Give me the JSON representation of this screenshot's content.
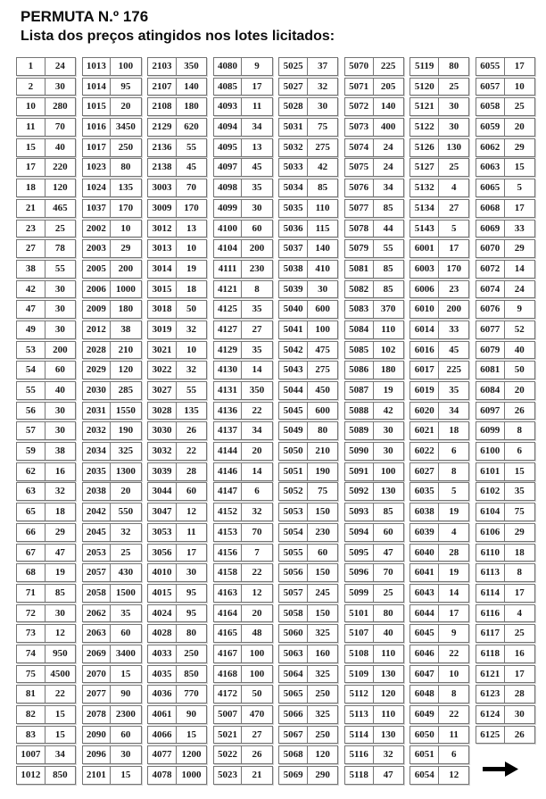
{
  "header": {
    "title": "PERMUTA N.º 176",
    "subtitle": "Lista dos preços atingidos nos lotes licitados:"
  },
  "icons": {
    "continuation_arrow": "right-arrow"
  },
  "table": {
    "column_semantics": [
      "lot_number",
      "price"
    ],
    "columns": [
      [
        [
          1,
          24
        ],
        [
          2,
          30
        ],
        [
          10,
          280
        ],
        [
          11,
          70
        ],
        [
          15,
          40
        ],
        [
          17,
          220
        ],
        [
          18,
          120
        ],
        [
          21,
          465
        ],
        [
          23,
          25
        ],
        [
          27,
          78
        ],
        [
          38,
          55
        ],
        [
          42,
          30
        ],
        [
          47,
          30
        ],
        [
          49,
          30
        ],
        [
          53,
          200
        ],
        [
          54,
          60
        ],
        [
          55,
          40
        ],
        [
          56,
          30
        ],
        [
          57,
          30
        ],
        [
          59,
          38
        ],
        [
          62,
          16
        ],
        [
          63,
          32
        ],
        [
          65,
          18
        ],
        [
          66,
          29
        ],
        [
          67,
          47
        ],
        [
          68,
          19
        ],
        [
          71,
          85
        ],
        [
          72,
          30
        ],
        [
          73,
          12
        ],
        [
          74,
          950
        ],
        [
          75,
          4500
        ],
        [
          81,
          22
        ],
        [
          82,
          15
        ],
        [
          83,
          15
        ],
        [
          1007,
          34
        ],
        [
          1012,
          850
        ]
      ],
      [
        [
          1013,
          100
        ],
        [
          1014,
          95
        ],
        [
          1015,
          20
        ],
        [
          1016,
          3450
        ],
        [
          1017,
          250
        ],
        [
          1023,
          80
        ],
        [
          1024,
          135
        ],
        [
          1037,
          170
        ],
        [
          2002,
          10
        ],
        [
          2003,
          29
        ],
        [
          2005,
          200
        ],
        [
          2006,
          1000
        ],
        [
          2009,
          180
        ],
        [
          2012,
          38
        ],
        [
          2028,
          210
        ],
        [
          2029,
          120
        ],
        [
          2030,
          285
        ],
        [
          2031,
          1550
        ],
        [
          2032,
          190
        ],
        [
          2034,
          325
        ],
        [
          2035,
          1300
        ],
        [
          2038,
          20
        ],
        [
          2042,
          550
        ],
        [
          2045,
          32
        ],
        [
          2053,
          25
        ],
        [
          2057,
          430
        ],
        [
          2058,
          1500
        ],
        [
          2062,
          35
        ],
        [
          2063,
          60
        ],
        [
          2069,
          3400
        ],
        [
          2070,
          15
        ],
        [
          2077,
          90
        ],
        [
          2078,
          2300
        ],
        [
          2090,
          60
        ],
        [
          2096,
          30
        ],
        [
          2101,
          15
        ]
      ],
      [
        [
          2103,
          350
        ],
        [
          2107,
          140
        ],
        [
          2108,
          180
        ],
        [
          2129,
          620
        ],
        [
          2136,
          55
        ],
        [
          2138,
          45
        ],
        [
          3003,
          70
        ],
        [
          3009,
          170
        ],
        [
          3012,
          13
        ],
        [
          3013,
          10
        ],
        [
          3014,
          19
        ],
        [
          3015,
          18
        ],
        [
          3018,
          50
        ],
        [
          3019,
          32
        ],
        [
          3021,
          10
        ],
        [
          3022,
          32
        ],
        [
          3027,
          55
        ],
        [
          3028,
          135
        ],
        [
          3030,
          26
        ],
        [
          3032,
          22
        ],
        [
          3039,
          28
        ],
        [
          3044,
          60
        ],
        [
          3047,
          12
        ],
        [
          3053,
          11
        ],
        [
          3056,
          17
        ],
        [
          4010,
          30
        ],
        [
          4015,
          95
        ],
        [
          4024,
          95
        ],
        [
          4028,
          80
        ],
        [
          4033,
          250
        ],
        [
          4035,
          850
        ],
        [
          4036,
          770
        ],
        [
          4061,
          90
        ],
        [
          4066,
          15
        ],
        [
          4077,
          1200
        ],
        [
          4078,
          1000
        ]
      ],
      [
        [
          4080,
          9
        ],
        [
          4085,
          17
        ],
        [
          4093,
          11
        ],
        [
          4094,
          34
        ],
        [
          4095,
          13
        ],
        [
          4097,
          45
        ],
        [
          4098,
          35
        ],
        [
          4099,
          30
        ],
        [
          4100,
          60
        ],
        [
          4104,
          200
        ],
        [
          4111,
          230
        ],
        [
          4121,
          8
        ],
        [
          4125,
          35
        ],
        [
          4127,
          27
        ],
        [
          4129,
          35
        ],
        [
          4130,
          14
        ],
        [
          4131,
          350
        ],
        [
          4136,
          22
        ],
        [
          4137,
          34
        ],
        [
          4144,
          20
        ],
        [
          4146,
          14
        ],
        [
          4147,
          6
        ],
        [
          4152,
          32
        ],
        [
          4153,
          70
        ],
        [
          4156,
          7
        ],
        [
          4158,
          22
        ],
        [
          4163,
          12
        ],
        [
          4164,
          20
        ],
        [
          4165,
          48
        ],
        [
          4167,
          100
        ],
        [
          4168,
          100
        ],
        [
          4172,
          50
        ],
        [
          5007,
          470
        ],
        [
          5021,
          27
        ],
        [
          5022,
          26
        ],
        [
          5023,
          21
        ]
      ],
      [
        [
          5025,
          37
        ],
        [
          5027,
          32
        ],
        [
          5028,
          30
        ],
        [
          5031,
          75
        ],
        [
          5032,
          275
        ],
        [
          5033,
          42
        ],
        [
          5034,
          85
        ],
        [
          5035,
          110
        ],
        [
          5036,
          115
        ],
        [
          5037,
          140
        ],
        [
          5038,
          410
        ],
        [
          5039,
          30
        ],
        [
          5040,
          600
        ],
        [
          5041,
          100
        ],
        [
          5042,
          475
        ],
        [
          5043,
          275
        ],
        [
          5044,
          450
        ],
        [
          5045,
          600
        ],
        [
          5049,
          80
        ],
        [
          5050,
          210
        ],
        [
          5051,
          190
        ],
        [
          5052,
          75
        ],
        [
          5053,
          150
        ],
        [
          5054,
          230
        ],
        [
          5055,
          60
        ],
        [
          5056,
          150
        ],
        [
          5057,
          245
        ],
        [
          5058,
          150
        ],
        [
          5060,
          325
        ],
        [
          5063,
          160
        ],
        [
          5064,
          325
        ],
        [
          5065,
          250
        ],
        [
          5066,
          325
        ],
        [
          5067,
          250
        ],
        [
          5068,
          120
        ],
        [
          5069,
          290
        ]
      ],
      [
        [
          5070,
          225
        ],
        [
          5071,
          205
        ],
        [
          5072,
          140
        ],
        [
          5073,
          400
        ],
        [
          5074,
          24
        ],
        [
          5075,
          24
        ],
        [
          5076,
          34
        ],
        [
          5077,
          85
        ],
        [
          5078,
          44
        ],
        [
          5079,
          55
        ],
        [
          5081,
          85
        ],
        [
          5082,
          85
        ],
        [
          5083,
          370
        ],
        [
          5084,
          110
        ],
        [
          5085,
          102
        ],
        [
          5086,
          180
        ],
        [
          5087,
          19
        ],
        [
          5088,
          42
        ],
        [
          5089,
          30
        ],
        [
          5090,
          30
        ],
        [
          5091,
          100
        ],
        [
          5092,
          130
        ],
        [
          5093,
          85
        ],
        [
          5094,
          60
        ],
        [
          5095,
          47
        ],
        [
          5096,
          70
        ],
        [
          5099,
          25
        ],
        [
          5101,
          80
        ],
        [
          5107,
          40
        ],
        [
          5108,
          110
        ],
        [
          5109,
          130
        ],
        [
          5112,
          120
        ],
        [
          5113,
          110
        ],
        [
          5114,
          130
        ],
        [
          5116,
          32
        ],
        [
          5118,
          47
        ]
      ],
      [
        [
          5119,
          80
        ],
        [
          5120,
          25
        ],
        [
          5121,
          30
        ],
        [
          5122,
          30
        ],
        [
          5126,
          130
        ],
        [
          5127,
          25
        ],
        [
          5132,
          4
        ],
        [
          5134,
          27
        ],
        [
          5143,
          5
        ],
        [
          6001,
          17
        ],
        [
          6003,
          170
        ],
        [
          6006,
          23
        ],
        [
          6010,
          200
        ],
        [
          6014,
          33
        ],
        [
          6016,
          45
        ],
        [
          6017,
          225
        ],
        [
          6019,
          35
        ],
        [
          6020,
          34
        ],
        [
          6021,
          18
        ],
        [
          6022,
          6
        ],
        [
          6027,
          8
        ],
        [
          6035,
          5
        ],
        [
          6038,
          19
        ],
        [
          6039,
          4
        ],
        [
          6040,
          28
        ],
        [
          6041,
          19
        ],
        [
          6043,
          14
        ],
        [
          6044,
          17
        ],
        [
          6045,
          9
        ],
        [
          6046,
          22
        ],
        [
          6047,
          10
        ],
        [
          6048,
          8
        ],
        [
          6049,
          22
        ],
        [
          6050,
          11
        ],
        [
          6051,
          6
        ],
        [
          6054,
          12
        ]
      ],
      [
        [
          6055,
          17
        ],
        [
          6057,
          10
        ],
        [
          6058,
          25
        ],
        [
          6059,
          20
        ],
        [
          6062,
          29
        ],
        [
          6063,
          15
        ],
        [
          6065,
          5
        ],
        [
          6068,
          17
        ],
        [
          6069,
          33
        ],
        [
          6070,
          29
        ],
        [
          6072,
          14
        ],
        [
          6074,
          24
        ],
        [
          6076,
          9
        ],
        [
          6077,
          52
        ],
        [
          6079,
          40
        ],
        [
          6081,
          50
        ],
        [
          6084,
          20
        ],
        [
          6097,
          26
        ],
        [
          6099,
          8
        ],
        [
          6100,
          6
        ],
        [
          6101,
          15
        ],
        [
          6102,
          35
        ],
        [
          6104,
          75
        ],
        [
          6106,
          29
        ],
        [
          6110,
          18
        ],
        [
          6113,
          8
        ],
        [
          6114,
          17
        ],
        [
          6116,
          4
        ],
        [
          6117,
          25
        ],
        [
          6118,
          16
        ],
        [
          6121,
          17
        ],
        [
          6123,
          28
        ],
        [
          6124,
          30
        ],
        [
          6125,
          26
        ]
      ]
    ]
  }
}
